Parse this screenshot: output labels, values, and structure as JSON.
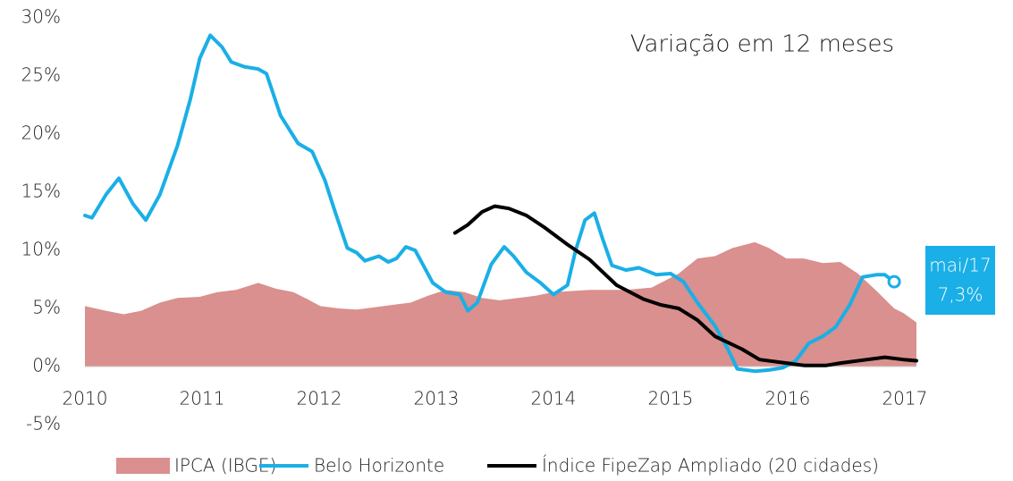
{
  "chart_data": {
    "type": "line",
    "title": "Variação em 12 meses",
    "xlim": [
      2010,
      2017.1
    ],
    "xticks": [
      2010,
      2011,
      2012,
      2013,
      2014,
      2015,
      2016,
      2017
    ],
    "ylim": [
      -5,
      30
    ],
    "yticks": [
      {
        "value": -5,
        "label": "-5%"
      },
      {
        "value": 0,
        "label": "0%"
      },
      {
        "value": 5,
        "label": "5%"
      },
      {
        "value": 10,
        "label": "10%"
      },
      {
        "value": 15,
        "label": "15%"
      },
      {
        "value": 20,
        "label": "20%"
      },
      {
        "value": 25,
        "label": "25%"
      },
      {
        "value": 30,
        "label": "30%"
      }
    ],
    "grid": false,
    "legend": "bottom",
    "series": [
      {
        "name": "IPCA (IBGE)",
        "kind": "area",
        "color": "#d9908e",
        "x": [
          2010.0,
          2010.18,
          2010.33,
          2010.48,
          2010.64,
          2010.79,
          2010.98,
          2011.13,
          2011.29,
          2011.48,
          2011.63,
          2011.78,
          2011.9,
          2012.01,
          2012.17,
          2012.32,
          2012.47,
          2012.62,
          2012.78,
          2012.93,
          2013.08,
          2013.24,
          2013.39,
          2013.54,
          2013.7,
          2013.85,
          2014.0,
          2014.31,
          2014.62,
          2014.84,
          2015.07,
          2015.23,
          2015.38,
          2015.53,
          2015.72,
          2015.84,
          2015.99,
          2016.14,
          2016.3,
          2016.45,
          2016.6,
          2016.76,
          2016.91,
          2016.99,
          2017.1
        ],
        "values": [
          5.2,
          4.8,
          4.5,
          4.8,
          5.5,
          5.9,
          6.0,
          6.4,
          6.6,
          7.2,
          6.7,
          6.4,
          5.8,
          5.2,
          5.0,
          4.9,
          5.1,
          5.3,
          5.5,
          6.1,
          6.6,
          6.4,
          5.9,
          5.7,
          5.9,
          6.1,
          6.4,
          6.6,
          6.6,
          6.8,
          8.0,
          9.3,
          9.5,
          10.2,
          10.7,
          10.2,
          9.3,
          9.3,
          8.9,
          9.0,
          8.0,
          6.5,
          5.0,
          4.6,
          3.8
        ]
      },
      {
        "name": "Belo Horizonte",
        "kind": "line",
        "color": "#1aafe6",
        "x": [
          2010.0,
          2010.06,
          2010.18,
          2010.29,
          2010.41,
          2010.52,
          2010.64,
          2010.79,
          2010.9,
          2010.98,
          2011.07,
          2011.17,
          2011.25,
          2011.36,
          2011.48,
          2011.55,
          2011.67,
          2011.82,
          2011.94,
          2012.05,
          2012.13,
          2012.24,
          2012.32,
          2012.39,
          2012.51,
          2012.59,
          2012.66,
          2012.74,
          2012.82,
          2012.89,
          2012.97,
          2013.08,
          2013.2,
          2013.27,
          2013.35,
          2013.47,
          2013.58,
          2013.66,
          2013.77,
          2013.89,
          2014.0,
          2014.12,
          2014.19,
          2014.27,
          2014.35,
          2014.42,
          2014.5,
          2014.62,
          2014.73,
          2014.88,
          2015.0,
          2015.11,
          2015.23,
          2015.38,
          2015.49,
          2015.57,
          2015.72,
          2015.84,
          2015.96,
          2016.07,
          2016.18,
          2016.3,
          2016.41,
          2016.53,
          2016.64,
          2016.76,
          2016.83,
          2016.91
        ],
        "values": [
          13.0,
          12.8,
          14.8,
          16.2,
          14.0,
          12.6,
          14.8,
          19,
          23,
          26.5,
          28.5,
          27.5,
          26.2,
          25.8,
          25.6,
          25.2,
          21.6,
          19.2,
          18.5,
          16.0,
          13.5,
          10.2,
          9.8,
          9.1,
          9.5,
          9.0,
          9.3,
          10.3,
          10.0,
          8.7,
          7.2,
          6.4,
          6.2,
          4.8,
          5.5,
          8.8,
          10.3,
          9.5,
          8.1,
          7.2,
          6.2,
          7.0,
          10.0,
          12.6,
          13.2,
          11.0,
          8.7,
          8.3,
          8.5,
          7.9,
          8.0,
          7.3,
          5.5,
          3.5,
          1.5,
          -0.2,
          -0.4,
          -0.3,
          -0.1,
          0.5,
          2.0,
          2.6,
          3.4,
          5.3,
          7.7,
          7.9,
          7.9,
          7.3
        ],
        "end_label": "mai/17",
        "end_value_label": "7,3%"
      },
      {
        "name": "Índice FipeZap Ampliado (20 cidades)",
        "kind": "line",
        "color": "#000000",
        "x": [
          2013.16,
          2013.27,
          2013.39,
          2013.5,
          2013.62,
          2013.77,
          2013.92,
          2014.12,
          2014.31,
          2014.54,
          2014.77,
          2014.92,
          2015.07,
          2015.23,
          2015.38,
          2015.61,
          2015.76,
          2015.99,
          2016.14,
          2016.33,
          2016.45,
          2016.68,
          2016.83,
          2016.99,
          2017.1
        ],
        "values": [
          11.5,
          12.2,
          13.3,
          13.8,
          13.6,
          13.0,
          12.0,
          10.5,
          9.2,
          7.0,
          5.8,
          5.3,
          5.0,
          4.0,
          2.6,
          1.5,
          0.6,
          0.3,
          0.1,
          0.1,
          0.3,
          0.6,
          0.8,
          0.6,
          0.5
        ]
      }
    ]
  }
}
